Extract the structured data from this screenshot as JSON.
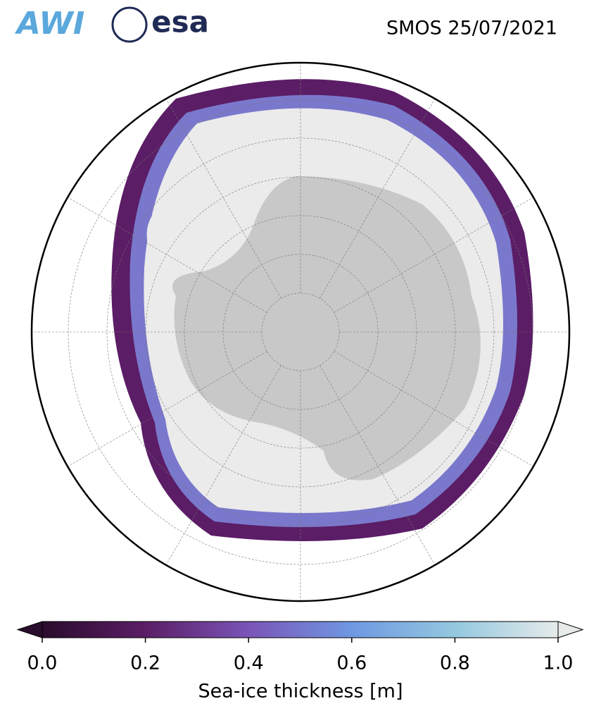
{
  "header": {
    "logos": [
      "AWI",
      "esa"
    ],
    "title": "SMOS 25/07/2021"
  },
  "colorbar": {
    "label": "Sea-ice thickness [m]",
    "clim": [
      0,
      1
    ],
    "ticks": [
      {
        "value": 0,
        "label": "0.0"
      },
      0.2,
      0.4,
      0.6,
      0.8,
      {
        "value": 1,
        "label": "1.0"
      }
    ],
    "colormap": [
      "#2a0c2c",
      "#5b1d66",
      "#7a55b8",
      "#6f98e2",
      "#93c8df",
      "#e6ebea"
    ]
  }
}
